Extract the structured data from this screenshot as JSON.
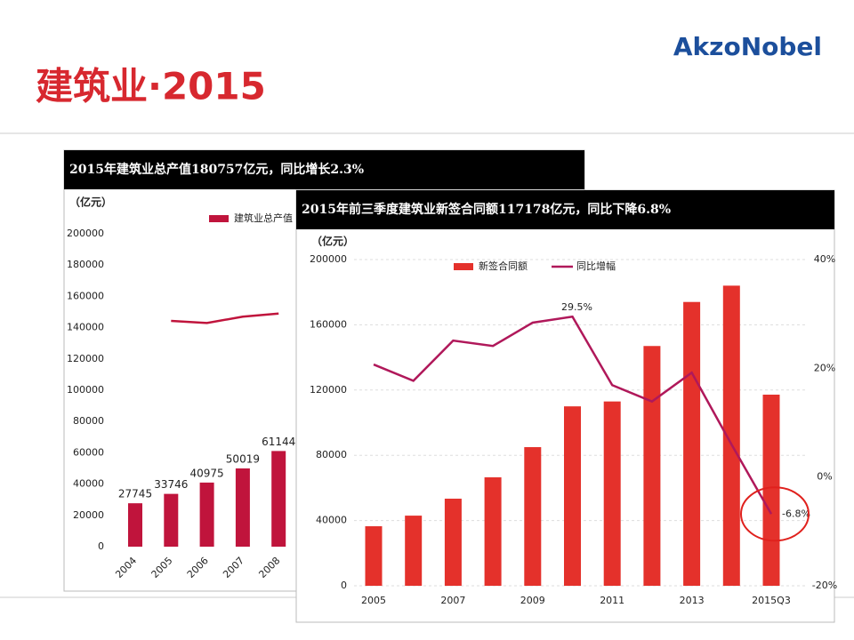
{
  "header": {
    "title": "建筑业·2015",
    "logo": "AkzoNobel"
  },
  "chart_data": [
    {
      "type": "bar",
      "title": "2015年建筑业总产值180757亿元，同比增长2.3%",
      "y_label": "（亿元）",
      "categories": [
        "2004",
        "2005",
        "2006",
        "2007",
        "2008"
      ],
      "series": [
        {
          "name": "建筑业总产值",
          "color": "#c0143c",
          "type": "bar",
          "values": [
            27745,
            33746,
            40975,
            50019,
            61144
          ]
        },
        {
          "color": "#c0143c",
          "type": "line",
          "values": [
            null,
            144300,
            143000,
            147000,
            149000
          ]
        }
      ],
      "ylim": [
        0,
        200000
      ],
      "yticks": [
        0,
        20000,
        40000,
        60000,
        80000,
        100000,
        120000,
        140000,
        160000,
        180000,
        200000
      ],
      "grid": false
    },
    {
      "type": "bar",
      "title": "2015年前三季度建筑业新签合同额117178亿元，同比下降6.8%",
      "y_label": "（亿元）",
      "categories": [
        "2005",
        null,
        "2007",
        null,
        "2009",
        null,
        "2011",
        null,
        "2013",
        null,
        "2015Q3"
      ],
      "series": [
        {
          "name": "新签合同额",
          "color": "#e4312b",
          "type": "bar",
          "values": [
            36500,
            43000,
            53400,
            66500,
            85000,
            110000,
            113000,
            147000,
            174000,
            184000,
            117178
          ]
        },
        {
          "name": "同比增幅",
          "color": "#b0185a",
          "type": "line",
          "axis": "y2",
          "values": [
            20.7,
            17.7,
            25.1,
            24.1,
            28.4,
            29.5,
            16.9,
            13.9,
            19.2,
            6.0,
            -6.8
          ],
          "value_labels": [
            null,
            null,
            null,
            null,
            null,
            "29.5%",
            null,
            null,
            null,
            null,
            "-6.8%"
          ]
        }
      ],
      "ylim": [
        0,
        200000
      ],
      "yticks": [
        0,
        40000,
        80000,
        120000,
        160000,
        200000
      ],
      "y2lim": [
        -20,
        40
      ],
      "y2ticks": [
        {
          "value": -20,
          "label": "-20%"
        },
        {
          "value": 0,
          "label": "0%"
        },
        {
          "value": 20,
          "label": "20%"
        },
        {
          "value": 40,
          "label": "40%"
        }
      ],
      "grid": true
    }
  ]
}
